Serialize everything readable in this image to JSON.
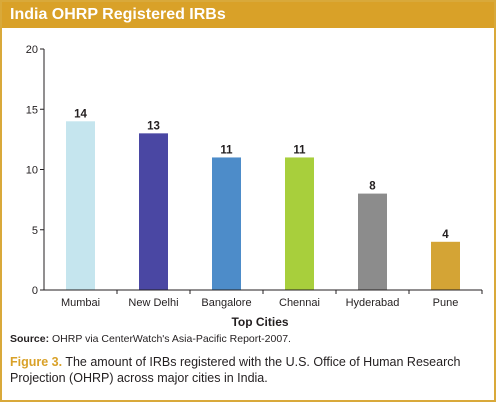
{
  "header": {
    "title": "India OHRP Registered IRBs"
  },
  "chart_data": {
    "type": "bar",
    "categories": [
      "Mumbai",
      "New Delhi",
      "Bangalore",
      "Chennai",
      "Hyderabad",
      "Pune"
    ],
    "values": [
      14,
      13,
      11,
      11,
      8,
      4
    ],
    "colors": [
      "#c5e5ee",
      "#4a47a3",
      "#4d8cc9",
      "#a8cf3c",
      "#8c8c8c",
      "#d4a435"
    ],
    "xlabel": "Top Cities",
    "ylabel": "",
    "ylim": [
      0,
      20
    ],
    "yticks": [
      0,
      5,
      10,
      15,
      20
    ],
    "grid": false,
    "legend": "none"
  },
  "footer": {
    "source_label": "Source:",
    "source_text": "OHRP via CenterWatch's Asia-Pacific Report-2007.",
    "figure_label": "Figure 3.",
    "caption_text": "The amount of IRBs registered with the U.S. Office of Human Research Projection (OHRP) across major cities in India."
  }
}
